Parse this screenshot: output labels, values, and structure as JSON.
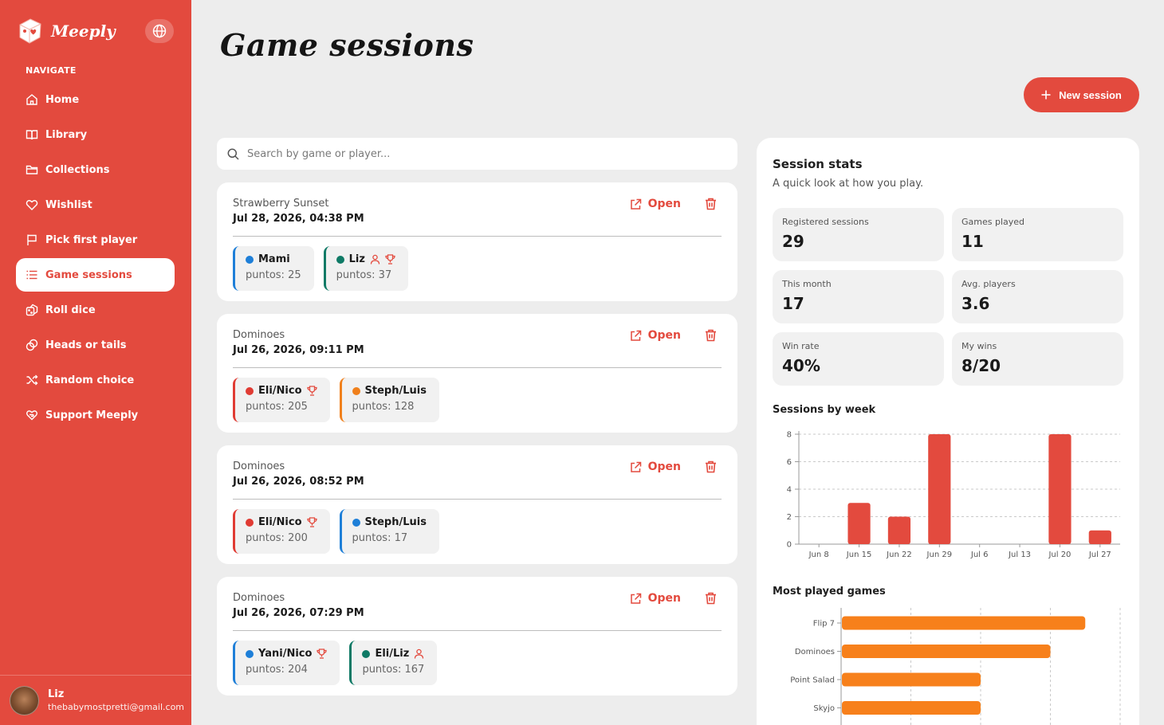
{
  "brand": {
    "name": "Meeply"
  },
  "nav": {
    "heading": "NAVIGATE",
    "items": [
      {
        "label": "Home",
        "icon": "home-icon"
      },
      {
        "label": "Library",
        "icon": "book-icon"
      },
      {
        "label": "Collections",
        "icon": "folder-icon"
      },
      {
        "label": "Wishlist",
        "icon": "heart-icon"
      },
      {
        "label": "Pick first player",
        "icon": "flag-icon"
      },
      {
        "label": "Game sessions",
        "icon": "list-icon",
        "active": true
      },
      {
        "label": "Roll dice",
        "icon": "dice-icon"
      },
      {
        "label": "Heads or tails",
        "icon": "coin-icon"
      },
      {
        "label": "Random choice",
        "icon": "shuffle-icon"
      },
      {
        "label": "Support Meeply",
        "icon": "heart-hand-icon"
      }
    ]
  },
  "user": {
    "name": "Liz",
    "email": "thebabymostpretti@gmail.com"
  },
  "page": {
    "title": "Game sessions",
    "new_button": "New session"
  },
  "search": {
    "placeholder": "Search by game or player..."
  },
  "sessions": [
    {
      "game": "Strawberry Sunset",
      "date": "Jul 28, 2026, 04:38 PM",
      "open_label": "Open",
      "players": [
        {
          "name": "Mami",
          "score": "puntos: 25",
          "color": "#1e7fd8",
          "me": false,
          "winner": false
        },
        {
          "name": "Liz",
          "score": "puntos: 37",
          "color": "#0f7a66",
          "me": true,
          "winner": true
        }
      ]
    },
    {
      "game": "Dominoes",
      "date": "Jul 26, 2026, 09:11 PM",
      "open_label": "Open",
      "players": [
        {
          "name": "Eli/Nico",
          "score": "puntos: 205",
          "color": "#e03b33",
          "me": false,
          "winner": true
        },
        {
          "name": "Steph/Luis",
          "score": "puntos: 128",
          "color": "#f0801c",
          "me": false,
          "winner": false
        }
      ]
    },
    {
      "game": "Dominoes",
      "date": "Jul 26, 2026, 08:52 PM",
      "open_label": "Open",
      "players": [
        {
          "name": "Eli/Nico",
          "score": "puntos: 200",
          "color": "#e03b33",
          "me": false,
          "winner": true
        },
        {
          "name": "Steph/Luis",
          "score": "puntos: 17",
          "color": "#1e7fd8",
          "me": false,
          "winner": false
        }
      ]
    },
    {
      "game": "Dominoes",
      "date": "Jul 26, 2026, 07:29 PM",
      "open_label": "Open",
      "players": [
        {
          "name": "Yani/Nico",
          "score": "puntos: 204",
          "color": "#1e7fd8",
          "me": false,
          "winner": true
        },
        {
          "name": "Eli/Liz",
          "score": "puntos: 167",
          "color": "#0f7a66",
          "me": true,
          "winner": false
        }
      ]
    }
  ],
  "stats": {
    "title": "Session stats",
    "subtitle": "A quick look at how you play.",
    "tiles": [
      {
        "label": "Registered sessions",
        "value": "29"
      },
      {
        "label": "Games played",
        "value": "11"
      },
      {
        "label": "This month",
        "value": "17"
      },
      {
        "label": "Avg. players",
        "value": "3.6"
      },
      {
        "label": "Win rate",
        "value": "40%"
      },
      {
        "label": "My wins",
        "value": "8/20"
      }
    ]
  },
  "chart_data": [
    {
      "type": "bar",
      "title": "Sessions by week",
      "categories": [
        "Jun 8",
        "Jun 15",
        "Jun 22",
        "Jun 29",
        "Jul 6",
        "Jul 13",
        "Jul 20",
        "Jul 27"
      ],
      "values": [
        0,
        3,
        2,
        8,
        0,
        0,
        8,
        1
      ],
      "ylim": [
        0,
        8
      ],
      "yticks": [
        0,
        2,
        4,
        6,
        8
      ],
      "color": "#e34a3e",
      "grid": true
    },
    {
      "type": "bar",
      "orientation": "horizontal",
      "title": "Most played games",
      "categories": [
        "Flip 7",
        "Dominoes",
        "Point Salad",
        "Skyjo"
      ],
      "values": [
        7,
        6,
        4,
        4
      ],
      "color": "#f7801b",
      "grid": true
    }
  ]
}
